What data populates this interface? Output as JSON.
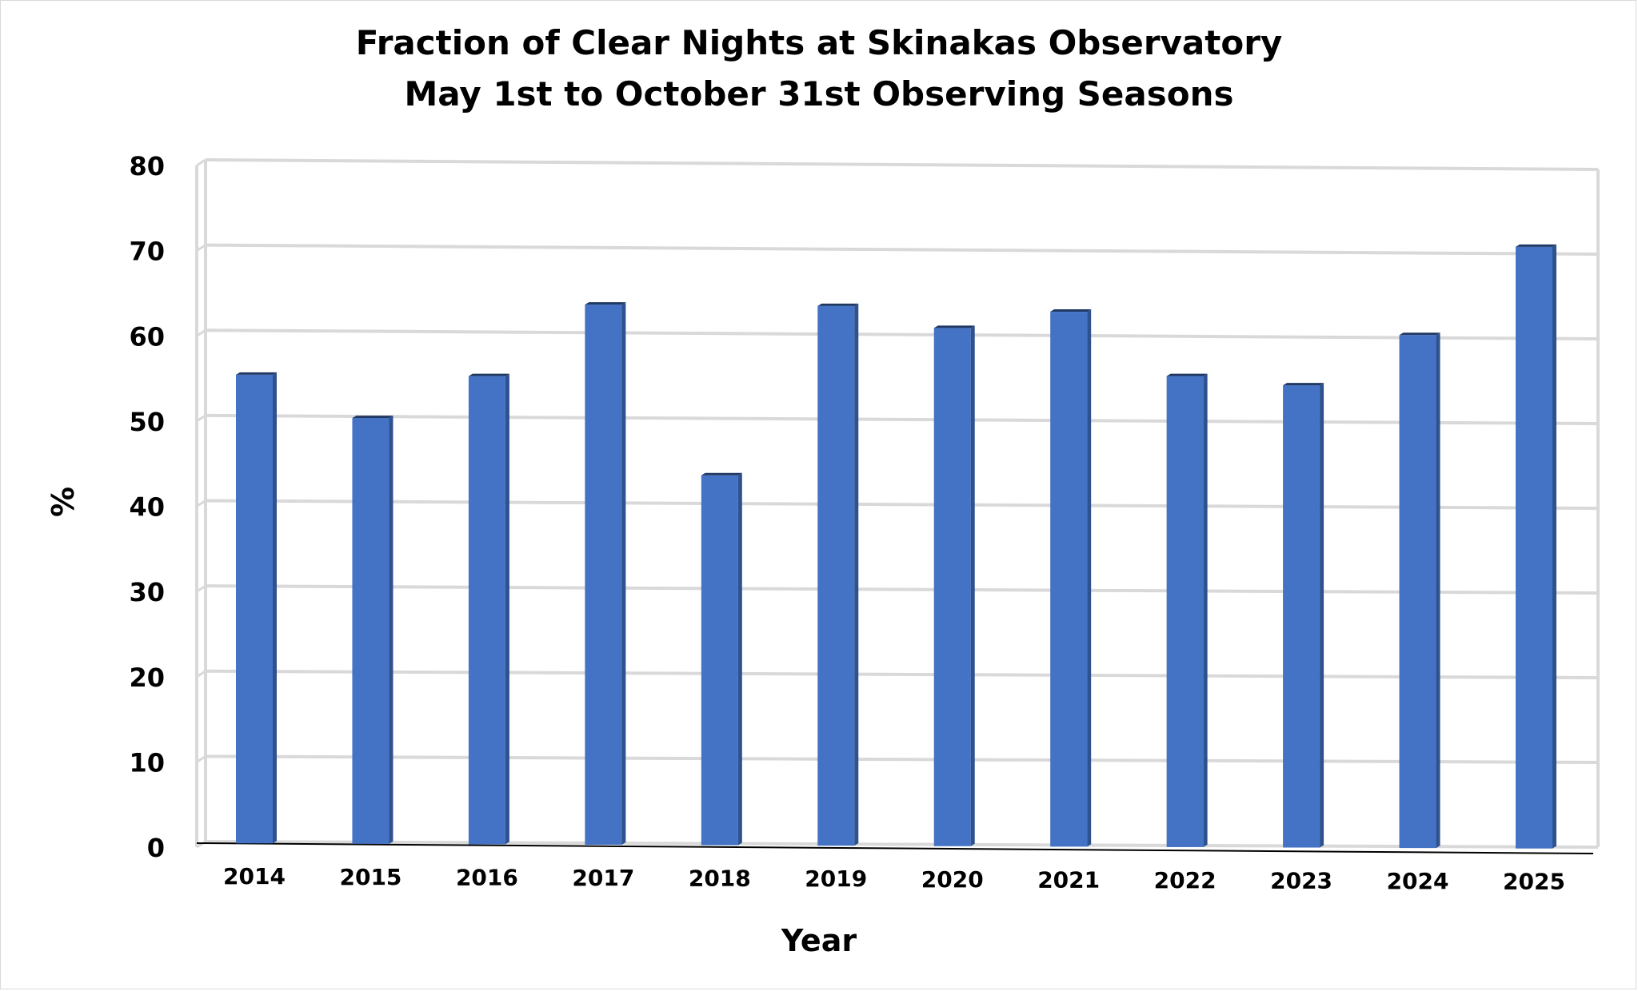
{
  "chart_data": {
    "type": "bar",
    "title": "Fraction of Clear Nights at Skinakas Observatory",
    "subtitle": "May 1st to October 31st Observing Seasons",
    "xlabel": "Year",
    "ylabel": "%",
    "categories": [
      "2014",
      "2015",
      "2016",
      "2017",
      "2018",
      "2019",
      "2020",
      "2021",
      "2022",
      "2023",
      "2024",
      "2025"
    ],
    "values": [
      55,
      50,
      55,
      63.5,
      43.5,
      63.5,
      61,
      63,
      55.5,
      54.5,
      60.5,
      71
    ],
    "ylim": [
      0,
      80
    ],
    "yticks": [
      "0",
      "10",
      "20",
      "30",
      "40",
      "50",
      "60",
      "70",
      "80"
    ],
    "grid": true,
    "legend": "none",
    "colors": {
      "bar_front": "#4472C4",
      "bar_side": "#2F528F",
      "bar_top": "#1F3864",
      "grid": "#d9d9d9"
    }
  }
}
